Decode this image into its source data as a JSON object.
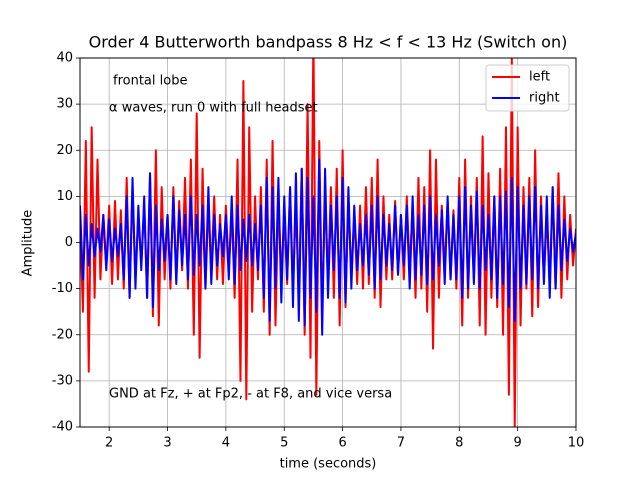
{
  "chart_data": {
    "type": "line",
    "title": "Order 4 Butterworth bandpass 8 Hz < f < 13 Hz (Switch on)",
    "xlabel": "time (seconds)",
    "ylabel": "Amplitude",
    "annotations": [
      "frontal lobe",
      "α waves, run 0 with full headset",
      "GND at Fz, + at Fp2, - at F8, and vice versa"
    ],
    "x": [
      1.5,
      1.55,
      1.6,
      1.65,
      1.7,
      1.75,
      1.8,
      1.85,
      1.9,
      1.95,
      2,
      2.05,
      2.1,
      2.15,
      2.2,
      2.25,
      2.3,
      2.35,
      2.4,
      2.45,
      2.5,
      2.55,
      2.6,
      2.65,
      2.7,
      2.75,
      2.8,
      2.85,
      2.9,
      2.95,
      3,
      3.05,
      3.1,
      3.15,
      3.2,
      3.25,
      3.3,
      3.35,
      3.4,
      3.45,
      3.5,
      3.55,
      3.6,
      3.65,
      3.7,
      3.75,
      3.8,
      3.85,
      3.9,
      3.95,
      4,
      4.05,
      4.1,
      4.15,
      4.2,
      4.25,
      4.3,
      4.35,
      4.4,
      4.45,
      4.5,
      4.55,
      4.6,
      4.65,
      4.7,
      4.75,
      4.8,
      4.85,
      4.9,
      4.95,
      5,
      5.05,
      5.1,
      5.15,
      5.2,
      5.25,
      5.3,
      5.35,
      5.4,
      5.45,
      5.5,
      5.55,
      5.6,
      5.65,
      5.7,
      5.75,
      5.8,
      5.85,
      5.9,
      5.95,
      6,
      6.05,
      6.1,
      6.15,
      6.2,
      6.25,
      6.3,
      6.35,
      6.4,
      6.45,
      6.5,
      6.55,
      6.6,
      6.65,
      6.7,
      6.75,
      6.8,
      6.85,
      6.9,
      6.95,
      7,
      7.05,
      7.1,
      7.15,
      7.2,
      7.25,
      7.3,
      7.35,
      7.4,
      7.45,
      7.5,
      7.55,
      7.6,
      7.65,
      7.7,
      7.75,
      7.8,
      7.85,
      7.9,
      7.95,
      8,
      8.05,
      8.1,
      8.15,
      8.2,
      8.25,
      8.3,
      8.35,
      8.4,
      8.45,
      8.5,
      8.55,
      8.6,
      8.65,
      8.7,
      8.75,
      8.8,
      8.85,
      8.9,
      8.95,
      9,
      9.05,
      9.1,
      9.15,
      9.2,
      9.25,
      9.3,
      9.35,
      9.4,
      9.45,
      9.5,
      9.55,
      9.6,
      9.65,
      9.7,
      9.75,
      9.8,
      9.85,
      9.9,
      9.95,
      10
    ],
    "series": [
      {
        "name": "left",
        "color": "#ff0000",
        "values": [
          5,
          -15,
          22,
          -28,
          25,
          -12,
          18,
          -8,
          6,
          -5,
          8,
          -9,
          9,
          -8,
          7,
          -10,
          14,
          -12,
          12,
          -8,
          6,
          -5,
          8,
          -12,
          15,
          -16,
          20,
          -18,
          12,
          -8,
          6,
          -10,
          12,
          -8,
          9,
          -6,
          14,
          -10,
          18,
          -20,
          28,
          -25,
          16,
          -10,
          8,
          -6,
          10,
          -8,
          6,
          -9,
          8,
          -6,
          7,
          -12,
          18,
          -30,
          35,
          -34,
          25,
          -15,
          10,
          -8,
          12,
          -15,
          18,
          -20,
          22,
          -18,
          10,
          -8,
          6,
          -9,
          12,
          -10,
          8,
          -12,
          16,
          -20,
          30,
          -25,
          45,
          -33,
          22,
          -15,
          10,
          -8,
          12,
          -12,
          16,
          -18,
          20,
          -14,
          10,
          -8,
          6,
          -9,
          8,
          -10,
          12,
          -9,
          14,
          -12,
          18,
          -14,
          10,
          -8,
          6,
          -8,
          9,
          -7,
          6,
          -8,
          10,
          -6,
          8,
          -12,
          14,
          -10,
          12,
          -15,
          20,
          -23,
          18,
          -12,
          8,
          -6,
          9,
          -8,
          7,
          -10,
          14,
          -18,
          18,
          -12,
          10,
          -8,
          14,
          -18,
          23,
          -20,
          15,
          -12,
          10,
          -14,
          16,
          -20,
          25,
          -33,
          40,
          -40,
          25,
          -18,
          12,
          -10,
          14,
          -16,
          20,
          -14,
          10,
          -8,
          6,
          -9,
          12,
          -10,
          15,
          -12,
          10,
          -8,
          6,
          -5,
          3
        ]
      },
      {
        "name": "right",
        "color": "#0000ff",
        "values": [
          8,
          -8,
          6,
          -5,
          4,
          -3,
          3,
          -2,
          6,
          -6,
          5,
          -4,
          3,
          -3,
          4,
          -8,
          10,
          -12,
          14,
          -10,
          8,
          -6,
          10,
          -12,
          15,
          -14,
          8,
          -6,
          5,
          -4,
          6,
          -8,
          10,
          -9,
          7,
          -5,
          6,
          -8,
          10,
          -7,
          6,
          -5,
          8,
          -10,
          12,
          -9,
          6,
          -5,
          4,
          -3,
          6,
          -8,
          10,
          -9,
          8,
          -6,
          5,
          -4,
          6,
          -5,
          4,
          -6,
          8,
          -12,
          14,
          -17,
          12,
          -10,
          14,
          -13,
          10,
          -8,
          12,
          -14,
          15,
          -17,
          16,
          -18,
          14,
          -12,
          10,
          -15,
          18,
          -20,
          16,
          -12,
          8,
          -6,
          10,
          -12,
          14,
          -13,
          12,
          -10,
          8,
          -6,
          4,
          -5,
          6,
          -7,
          8,
          -10,
          10,
          -8,
          6,
          -5,
          4,
          -6,
          8,
          -7,
          6,
          -5,
          8,
          -10,
          10,
          -8,
          6,
          -7,
          8,
          -9,
          10,
          -8,
          6,
          -5,
          7,
          -9,
          10,
          -8,
          6,
          -8,
          10,
          -12,
          12,
          -10,
          8,
          -9,
          11,
          -10,
          8,
          -6,
          6,
          -8,
          10,
          -12,
          10,
          -9,
          11,
          -14,
          14,
          -17,
          12,
          -10,
          8,
          -9,
          10,
          -8,
          12,
          -10,
          8,
          -9,
          10,
          -12,
          12,
          -10,
          8,
          -6,
          5,
          -4,
          3,
          -2,
          2
        ]
      }
    ],
    "xlim": [
      1.5,
      10
    ],
    "ylim": [
      -40,
      40
    ],
    "xticks": [
      2,
      3,
      4,
      5,
      6,
      7,
      8,
      9,
      10
    ],
    "yticks": [
      -40,
      -30,
      -20,
      -10,
      0,
      10,
      20,
      30,
      40
    ],
    "grid": true,
    "legend": "upper right"
  }
}
